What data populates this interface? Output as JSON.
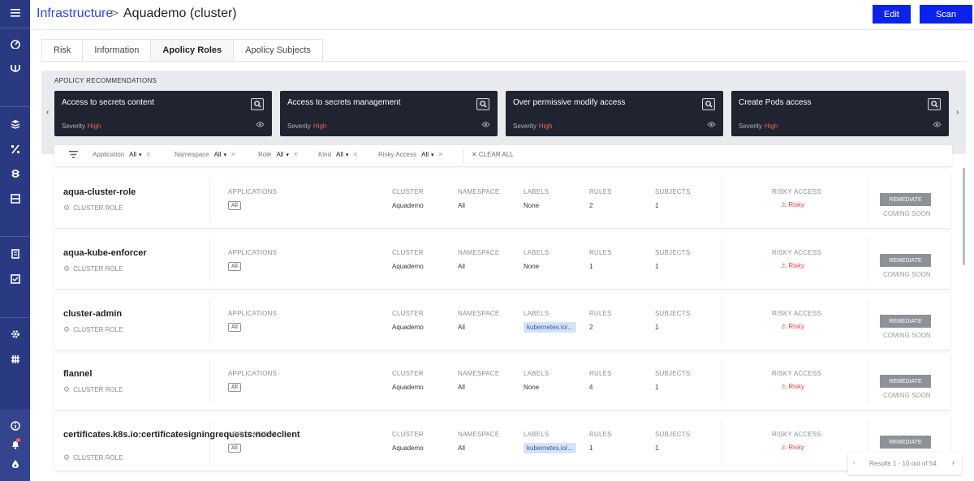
{
  "header": {
    "breadcrumb_link": "Infrastructure",
    "breadcrumb_sep": ">",
    "breadcrumb_current": "Aquademo (cluster)",
    "edit_label": "Edit",
    "scan_label": "Scan"
  },
  "sidebar": {
    "icons": [
      "menu-icon",
      "dashboard-icon",
      "aqua-logo-icon",
      "images-icon",
      "functions-icon",
      "workloads-icon",
      "infrastructure-icon",
      "policies-icon",
      "compliance-icon",
      "settings-icon",
      "integrations-icon",
      "help-icon",
      "notifications-icon",
      "account-icon"
    ]
  },
  "tabs": [
    {
      "label": "Risk",
      "active": false
    },
    {
      "label": "Information",
      "active": false
    },
    {
      "label": "Apolicy Roles",
      "active": true
    },
    {
      "label": "Apolicy Subjects",
      "active": false
    }
  ],
  "recommendations": {
    "title": "APOLICY RECOMMENDATIONS",
    "prev_arrow": "‹",
    "next_arrow": "›",
    "severity_label": "Severity",
    "cards": [
      {
        "name": "Access to secrets content",
        "severity": "High"
      },
      {
        "name": "Access to secrets management",
        "severity": "High"
      },
      {
        "name": "Over permissive modify access",
        "severity": "High"
      },
      {
        "name": "Create Pods access",
        "severity": "High"
      }
    ]
  },
  "filters": {
    "items": [
      {
        "label": "Application",
        "value": "All"
      },
      {
        "label": "Namespace",
        "value": "All"
      },
      {
        "label": "Role",
        "value": "All"
      },
      {
        "label": "Kind",
        "value": "All"
      },
      {
        "label": "Risky Access",
        "value": "All"
      }
    ],
    "clear_all": "✕ CLEAR ALL"
  },
  "columns": {
    "applications": "APPLICATIONS",
    "cluster": "CLUSTER",
    "namespace": "NAMESPACE",
    "labels": "LABELS",
    "rules": "RULES",
    "subjects": "SUBJECTS",
    "risky_access": "RISKY ACCESS"
  },
  "rows": [
    {
      "name": "aqua-cluster-role",
      "type": "CLUSTER ROLE",
      "applications": "All",
      "cluster": "Aquademo",
      "namespace": "All",
      "labels": "None",
      "labels_pill": false,
      "rules": "2",
      "subjects": "1",
      "risky": "Risky",
      "remediate": "REMEDIATE",
      "coming": "COMING SOON"
    },
    {
      "name": "aqua-kube-enforcer",
      "type": "CLUSTER ROLE",
      "applications": "All",
      "cluster": "Aquademo",
      "namespace": "All",
      "labels": "None",
      "labels_pill": false,
      "rules": "1",
      "subjects": "1",
      "risky": "Risky",
      "remediate": "REMEDIATE",
      "coming": "COMING SOON"
    },
    {
      "name": "cluster-admin",
      "type": "CLUSTER ROLE",
      "applications": "All",
      "cluster": "Aquademo",
      "namespace": "All",
      "labels": "kubernetes.io/...",
      "labels_pill": true,
      "rules": "2",
      "subjects": "1",
      "risky": "Risky",
      "remediate": "REMEDIATE",
      "coming": "COMING SOON"
    },
    {
      "name": "flannel",
      "type": "CLUSTER ROLE",
      "applications": "All",
      "cluster": "Aquademo",
      "namespace": "All",
      "labels": "None",
      "labels_pill": false,
      "rules": "4",
      "subjects": "1",
      "risky": "Risky",
      "remediate": "REMEDIATE",
      "coming": "COMING SOON"
    },
    {
      "name": "certificates.k8s.io:certificatesigningrequests:nodeclient",
      "type": "CLUSTER ROLE",
      "applications": "All",
      "cluster": "Aquademo",
      "namespace": "All",
      "labels": "kubernetes.io/...",
      "labels_pill": true,
      "rules": "1",
      "subjects": "1",
      "risky": "Risky",
      "remediate": "REMEDIATE",
      "coming": ""
    }
  ],
  "pagination": {
    "text": "Results 1 - 10 out of 54",
    "prev": "‹",
    "next": "›"
  }
}
